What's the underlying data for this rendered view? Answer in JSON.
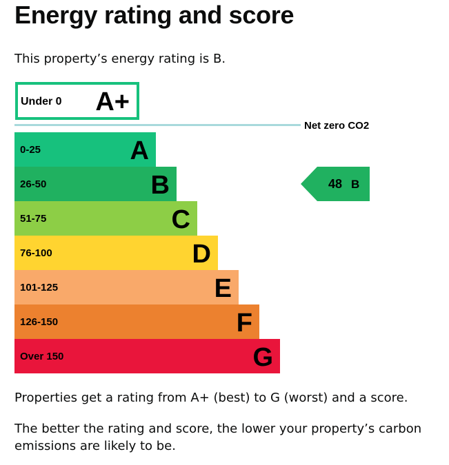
{
  "page": {
    "title": "Energy rating and score",
    "intro": "This property’s energy rating is B.",
    "footer_1": "Properties get a rating from A+ (best) to G (worst) and a score.",
    "footer_2": "The better the rating and score, the lower your property’s carbon emissions are likely to be."
  },
  "chart_data": {
    "type": "bar",
    "orientation": "horizontal",
    "top_band": {
      "range": "Under 0",
      "letter": "A+",
      "color": "#17c17d"
    },
    "net_zero": {
      "label": "Net zero CO2",
      "color": "#a8d9dc"
    },
    "bands": [
      {
        "range": "0-25",
        "letter": "A",
        "color": "#17c17d"
      },
      {
        "range": "26-50",
        "letter": "B",
        "color": "#20b160"
      },
      {
        "range": "51-75",
        "letter": "C",
        "color": "#8dce46"
      },
      {
        "range": "76-100",
        "letter": "D",
        "color": "#ffd430"
      },
      {
        "range": "101-125",
        "letter": "E",
        "color": "#f9a96a"
      },
      {
        "range": "126-150",
        "letter": "F",
        "color": "#ec812f"
      },
      {
        "range": "Over 150",
        "letter": "G",
        "color": "#e9153b"
      }
    ],
    "current": {
      "score": "48",
      "letter": "B",
      "band_index": 1,
      "color": "#20b160"
    }
  }
}
